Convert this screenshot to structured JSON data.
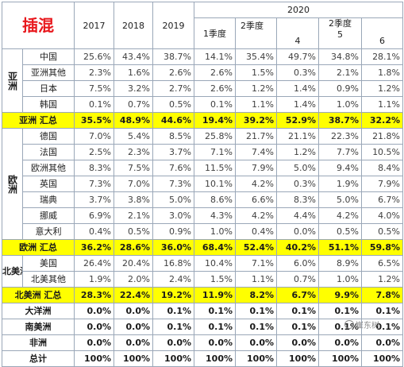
{
  "title": "插混",
  "header": {
    "years": [
      "2017",
      "2018",
      "2019"
    ],
    "year2020": "2020",
    "q1": "1季度",
    "q2a": "2季度",
    "q2b": "2季度",
    "months": [
      "4",
      "5",
      "6"
    ]
  },
  "regions": {
    "asia": "亚洲",
    "europe": "欧洲",
    "north_america": "北美洲"
  },
  "rows": [
    {
      "label": "中国",
      "values": [
        "25.6%",
        "43.4%",
        "38.7%",
        "14.1%",
        "35.4%",
        "49.7%",
        "34.8%",
        "28.1%"
      ]
    },
    {
      "label": "亚洲其他",
      "values": [
        "2.3%",
        "1.6%",
        "2.6%",
        "2.6%",
        "1.5%",
        "0.3%",
        "2.1%",
        "1.8%"
      ]
    },
    {
      "label": "日本",
      "values": [
        "7.5%",
        "3.2%",
        "2.7%",
        "2.6%",
        "1.2%",
        "1.4%",
        "0.9%",
        "1.2%"
      ]
    },
    {
      "label": "韩国",
      "values": [
        "0.1%",
        "0.7%",
        "0.5%",
        "0.1%",
        "1.1%",
        "1.4%",
        "1.0%",
        "1.1%"
      ]
    },
    {
      "label": "亚洲 汇总",
      "values": [
        "35.5%",
        "48.9%",
        "44.6%",
        "19.4%",
        "39.2%",
        "52.9%",
        "38.7%",
        "32.2%"
      ]
    },
    {
      "label": "德国",
      "values": [
        "7.0%",
        "5.4%",
        "8.5%",
        "25.8%",
        "21.7%",
        "21.1%",
        "22.3%",
        "21.8%"
      ]
    },
    {
      "label": "法国",
      "values": [
        "2.5%",
        "2.3%",
        "3.7%",
        "7.1%",
        "7.4%",
        "1.2%",
        "7.7%",
        "10.5%"
      ]
    },
    {
      "label": "欧洲其他",
      "values": [
        "8.3%",
        "7.5%",
        "7.6%",
        "11.5%",
        "7.9%",
        "5.0%",
        "9.4%",
        "8.4%"
      ]
    },
    {
      "label": "英国",
      "values": [
        "7.3%",
        "7.0%",
        "7.3%",
        "10.1%",
        "4.2%",
        "0.3%",
        "1.9%",
        "7.9%"
      ]
    },
    {
      "label": "瑞典",
      "values": [
        "3.7%",
        "3.8%",
        "5.0%",
        "8.6%",
        "6.6%",
        "8.3%",
        "5.0%",
        "6.7%"
      ]
    },
    {
      "label": "挪威",
      "values": [
        "6.9%",
        "2.1%",
        "3.0%",
        "4.3%",
        "4.2%",
        "4.4%",
        "4.2%",
        "4.0%"
      ]
    },
    {
      "label": "意大利",
      "values": [
        "0.4%",
        "0.5%",
        "0.9%",
        "1.0%",
        "0.4%",
        "0.0%",
        "0.5%",
        "0.5%"
      ]
    },
    {
      "label": "欧洲 汇总",
      "values": [
        "36.2%",
        "28.6%",
        "36.0%",
        "68.4%",
        "52.4%",
        "40.2%",
        "51.1%",
        "59.8%"
      ]
    },
    {
      "label": "美国",
      "values": [
        "26.4%",
        "20.4%",
        "16.8%",
        "10.4%",
        "7.1%",
        "6.0%",
        "8.9%",
        "6.5%"
      ]
    },
    {
      "label": "北美其他",
      "values": [
        "1.9%",
        "2.0%",
        "2.4%",
        "1.5%",
        "1.1%",
        "0.7%",
        "1.0%",
        "1.2%"
      ]
    },
    {
      "label": "北美洲 汇总",
      "values": [
        "28.3%",
        "22.4%",
        "19.2%",
        "11.9%",
        "8.2%",
        "6.7%",
        "9.9%",
        "7.8%"
      ]
    },
    {
      "label": "大洋洲",
      "values": [
        "0.0%",
        "0.0%",
        "0.1%",
        "0.1%",
        "0.1%",
        "0.1%",
        "0.1%",
        "0.1%"
      ]
    },
    {
      "label": "南美洲",
      "values": [
        "0.0%",
        "0.0%",
        "0.1%",
        "0.1%",
        "0.1%",
        "0.1%",
        "0.1%",
        "0.1%"
      ]
    },
    {
      "label": "非洲",
      "values": [
        "0.0%",
        "0.0%",
        "0.0%",
        "0.0%",
        "0.0%",
        "0.0%",
        "0.0%",
        "0.0%"
      ]
    },
    {
      "label": "总计",
      "values": [
        "100%",
        "100%",
        "100%",
        "100%",
        "100%",
        "100%",
        "100%",
        "100%"
      ]
    }
  ],
  "watermark": "崔东树",
  "colors": {
    "title": "#e8171c",
    "highlight": "#ffff00",
    "border": "#9aa7b8"
  }
}
